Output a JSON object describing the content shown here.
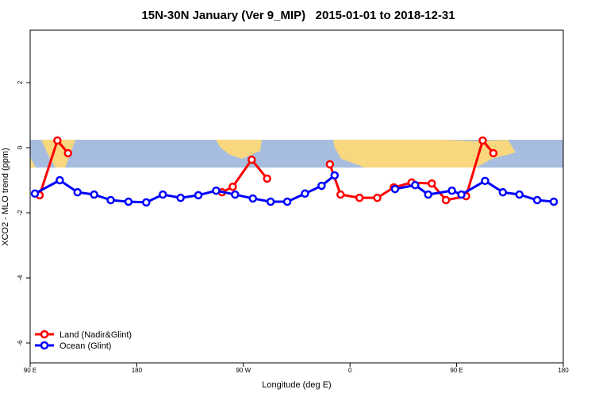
{
  "chart_data": {
    "type": "line",
    "title": "15N-30N January (Ver 9_MIP)   2015-01-01 to 2018-12-31",
    "x_label": "Longitude (deg E)",
    "y_label": "XCO2 - MLO trend (ppm)",
    "xlim": [
      90,
      540
    ],
    "ylim": [
      -6.61,
      3.61
    ],
    "xticks": [
      {
        "value": 90,
        "label": "90 E"
      },
      {
        "value": 180,
        "label": "180"
      },
      {
        "value": 270,
        "label": "90 W"
      },
      {
        "value": 360,
        "label": "0"
      },
      {
        "value": 450,
        "label": "90 E"
      },
      {
        "value": 540,
        "label": "180"
      }
    ],
    "yticks": [
      2,
      0,
      -2,
      -4,
      -6
    ],
    "legend": "bottom-left",
    "series": [
      {
        "name": "Land (Nadir&Glint)",
        "color": "#ff0000",
        "x": [
          98,
          113,
          122,
          null,
          252,
          261,
          277,
          290,
          null,
          343,
          352,
          368,
          383,
          397,
          412,
          429,
          441,
          458,
          472,
          481
        ],
        "values": [
          -1.46,
          0.22,
          -0.17,
          null,
          -1.37,
          -1.2,
          -0.37,
          -0.95,
          null,
          -0.51,
          -1.44,
          -1.54,
          -1.54,
          -1.22,
          -1.07,
          -1.1,
          -1.61,
          -1.49,
          0.22,
          -0.17
        ]
      },
      {
        "name": "Ocean (Glint)",
        "color": "#0000ff",
        "x": [
          94,
          115,
          130,
          144,
          158,
          173,
          188,
          202,
          217,
          232,
          247,
          263,
          278,
          293,
          307,
          322,
          336,
          347,
          null,
          398,
          415,
          426,
          446,
          454,
          474,
          489,
          503,
          518,
          532
        ],
        "values": [
          -1.41,
          -1.0,
          -1.37,
          -1.44,
          -1.61,
          -1.66,
          -1.68,
          -1.44,
          -1.54,
          -1.46,
          -1.32,
          -1.44,
          -1.56,
          -1.66,
          -1.66,
          -1.41,
          -1.17,
          -0.85,
          null,
          -1.27,
          -1.15,
          -1.44,
          -1.32,
          -1.44,
          -1.02,
          -1.37,
          -1.44,
          -1.61,
          -1.66
        ]
      }
    ]
  }
}
